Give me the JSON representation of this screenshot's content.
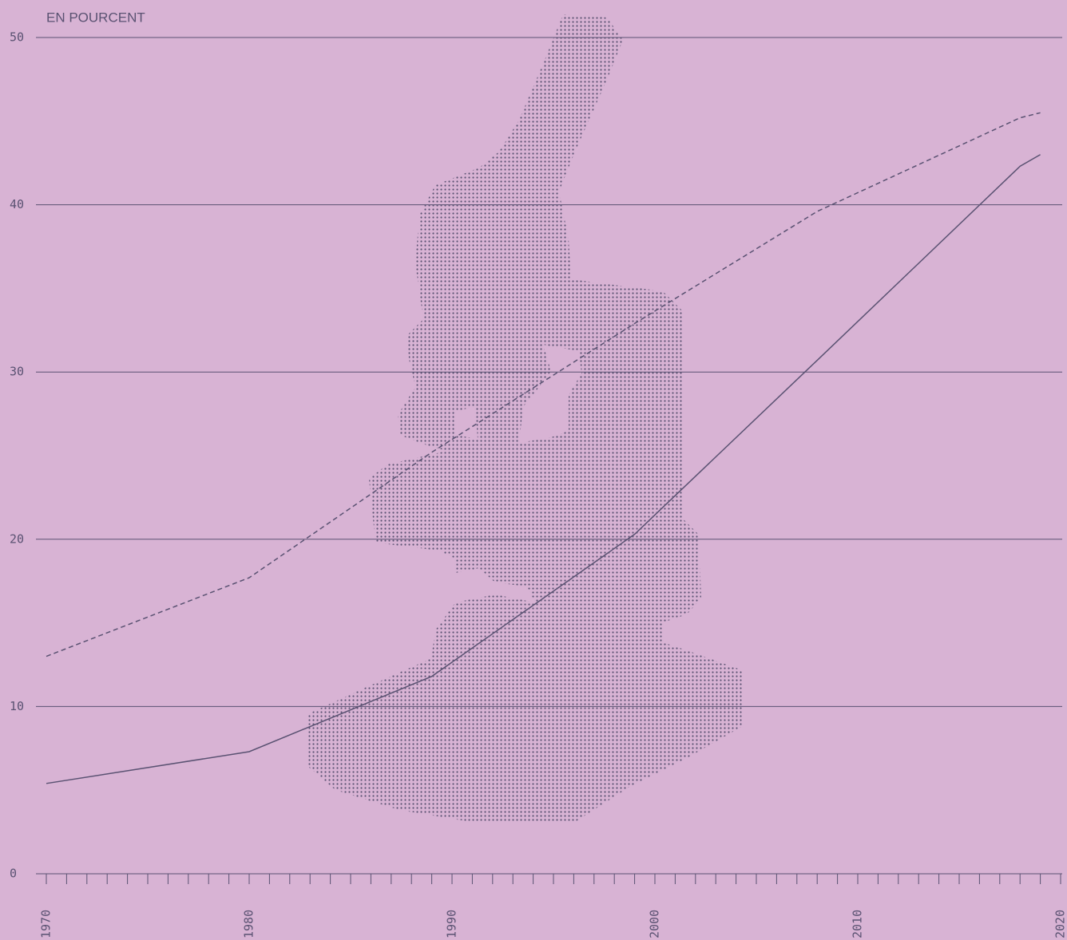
{
  "chart_data": {
    "type": "line",
    "y_label": "EN POURCENT",
    "x": [
      1970,
      1980,
      1989,
      1999,
      2008,
      2018,
      2019
    ],
    "series": [
      {
        "color": "#5a5272",
        "dash": "solid",
        "values": [
          5.4,
          7.3,
          11.8,
          20.3,
          30.7,
          42.3,
          43.0
        ]
      },
      {
        "color": "#5a5272",
        "dash": "dashed",
        "values": [
          13.0,
          17.7,
          25.2,
          32.9,
          39.6,
          45.2,
          45.5
        ]
      }
    ],
    "xlim": [
      1970,
      2020
    ],
    "xticks": [
      1970,
      1980,
      1990,
      2000,
      2010,
      2020
    ],
    "ylim": [
      0,
      50
    ],
    "yticks": [
      0,
      10,
      20,
      30,
      40,
      50
    ],
    "grid": true
  }
}
